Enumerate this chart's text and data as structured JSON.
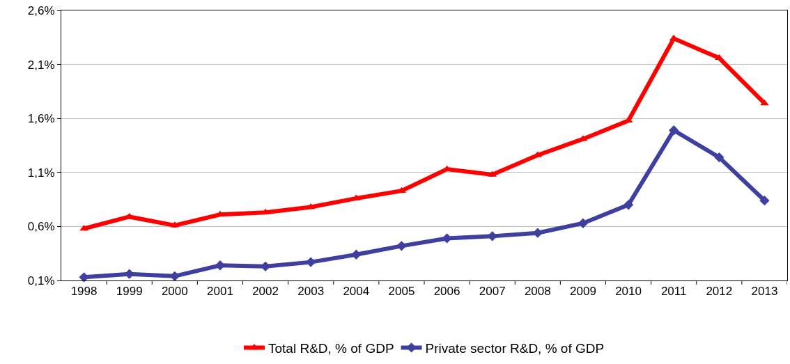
{
  "chart_data": {
    "type": "line",
    "categories": [
      "1998",
      "1999",
      "2000",
      "2001",
      "2002",
      "2003",
      "2004",
      "2005",
      "2006",
      "2007",
      "2008",
      "2009",
      "2010",
      "2011",
      "2012",
      "2013"
    ],
    "series": [
      {
        "name": "Total R&D, % of GDP",
        "color": "#ff0000",
        "marker": "triangle",
        "values": [
          0.58,
          0.69,
          0.61,
          0.71,
          0.73,
          0.78,
          0.86,
          0.93,
          1.13,
          1.08,
          1.26,
          1.41,
          1.58,
          2.34,
          2.16,
          1.74
        ]
      },
      {
        "name": "Private sector R&D, % of GDP",
        "color": "#3f3f9f",
        "marker": "diamond",
        "values": [
          0.13,
          0.16,
          0.14,
          0.24,
          0.23,
          0.27,
          0.34,
          0.42,
          0.49,
          0.51,
          0.54,
          0.63,
          0.8,
          1.49,
          1.24,
          0.84
        ]
      }
    ],
    "ylim": [
      0.1,
      2.6
    ],
    "yticks": [
      {
        "value": 0.1,
        "label": "0,1%"
      },
      {
        "value": 0.6,
        "label": "0,6%"
      },
      {
        "value": 1.1,
        "label": "1,1%"
      },
      {
        "value": 1.6,
        "label": "1,6%"
      },
      {
        "value": 2.1,
        "label": "2,1%"
      },
      {
        "value": 2.6,
        "label": "2,6%"
      }
    ],
    "grid": "y",
    "legend": "bottom",
    "line_style": "solid"
  }
}
